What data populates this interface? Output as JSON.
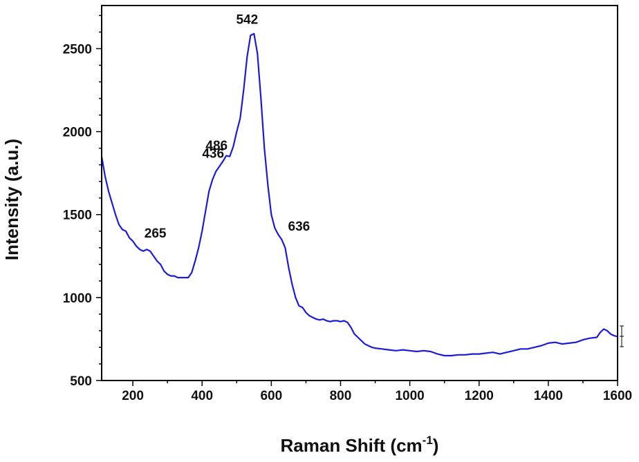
{
  "chart_data": {
    "type": "line",
    "title": "",
    "xlabel_main": "Raman Shift (cm",
    "xlabel_sup": "-1",
    "xlabel_tail": ")",
    "ylabel": "Intensity (a.u.)",
    "xlim": [
      110,
      1600
    ],
    "ylim": [
      500,
      2760
    ],
    "x_ticks": [
      "200",
      "400",
      "600",
      "800",
      "1000",
      "1200",
      "1400",
      "1600"
    ],
    "y_ticks": [
      "500",
      "1000",
      "1500",
      "2000",
      "2500"
    ],
    "grid": false,
    "legend": "none",
    "line_color": "#1a1adc",
    "annotations": [
      {
        "label": "265",
        "x": 265,
        "y": 1320
      },
      {
        "label": "436",
        "x": 436,
        "y": 1800
      },
      {
        "label": "486",
        "x": 486,
        "y": 1865
      },
      {
        "label": "542",
        "x": 542,
        "y": 2600
      },
      {
        "label": "636",
        "x": 636,
        "y": 1370
      }
    ],
    "series": [
      {
        "x": [
          110,
          120,
          130,
          140,
          150,
          160,
          170,
          180,
          190,
          200,
          210,
          220,
          230,
          240,
          250,
          260,
          270,
          280,
          290,
          300,
          310,
          320,
          330,
          340,
          350,
          360,
          370,
          380,
          390,
          400,
          410,
          420,
          430,
          440,
          450,
          460,
          470,
          480,
          490,
          500,
          510,
          520,
          530,
          540,
          550,
          560,
          570,
          580,
          590,
          600,
          610,
          620,
          630,
          640,
          650,
          660,
          670,
          680,
          690,
          700,
          710,
          720,
          730,
          740,
          750,
          760,
          770,
          780,
          790,
          800,
          810,
          820,
          830,
          840,
          850,
          860,
          870,
          880,
          890,
          900,
          920,
          940,
          960,
          980,
          1000,
          1020,
          1040,
          1060,
          1080,
          1100,
          1120,
          1140,
          1160,
          1180,
          1200,
          1220,
          1240,
          1260,
          1280,
          1300,
          1320,
          1340,
          1360,
          1380,
          1400,
          1420,
          1440,
          1460,
          1480,
          1500,
          1520,
          1540,
          1550,
          1560,
          1570,
          1580,
          1590,
          1600
        ],
        "y": [
          1850,
          1730,
          1640,
          1570,
          1500,
          1440,
          1410,
          1400,
          1360,
          1340,
          1310,
          1290,
          1280,
          1290,
          1280,
          1250,
          1220,
          1200,
          1160,
          1140,
          1130,
          1130,
          1120,
          1120,
          1120,
          1120,
          1150,
          1220,
          1300,
          1400,
          1520,
          1640,
          1710,
          1760,
          1790,
          1820,
          1855,
          1850,
          1910,
          2000,
          2080,
          2250,
          2450,
          2580,
          2590,
          2470,
          2200,
          1900,
          1680,
          1500,
          1420,
          1380,
          1350,
          1300,
          1180,
          1080,
          1000,
          950,
          940,
          910,
          890,
          880,
          870,
          865,
          870,
          860,
          855,
          860,
          860,
          855,
          860,
          850,
          820,
          780,
          760,
          740,
          720,
          710,
          700,
          695,
          690,
          685,
          680,
          685,
          680,
          675,
          680,
          675,
          660,
          650,
          650,
          655,
          655,
          660,
          660,
          665,
          670,
          660,
          670,
          680,
          690,
          690,
          700,
          710,
          725,
          730,
          720,
          725,
          730,
          745,
          755,
          760,
          790,
          810,
          800,
          780,
          770,
          765
        ]
      }
    ]
  }
}
